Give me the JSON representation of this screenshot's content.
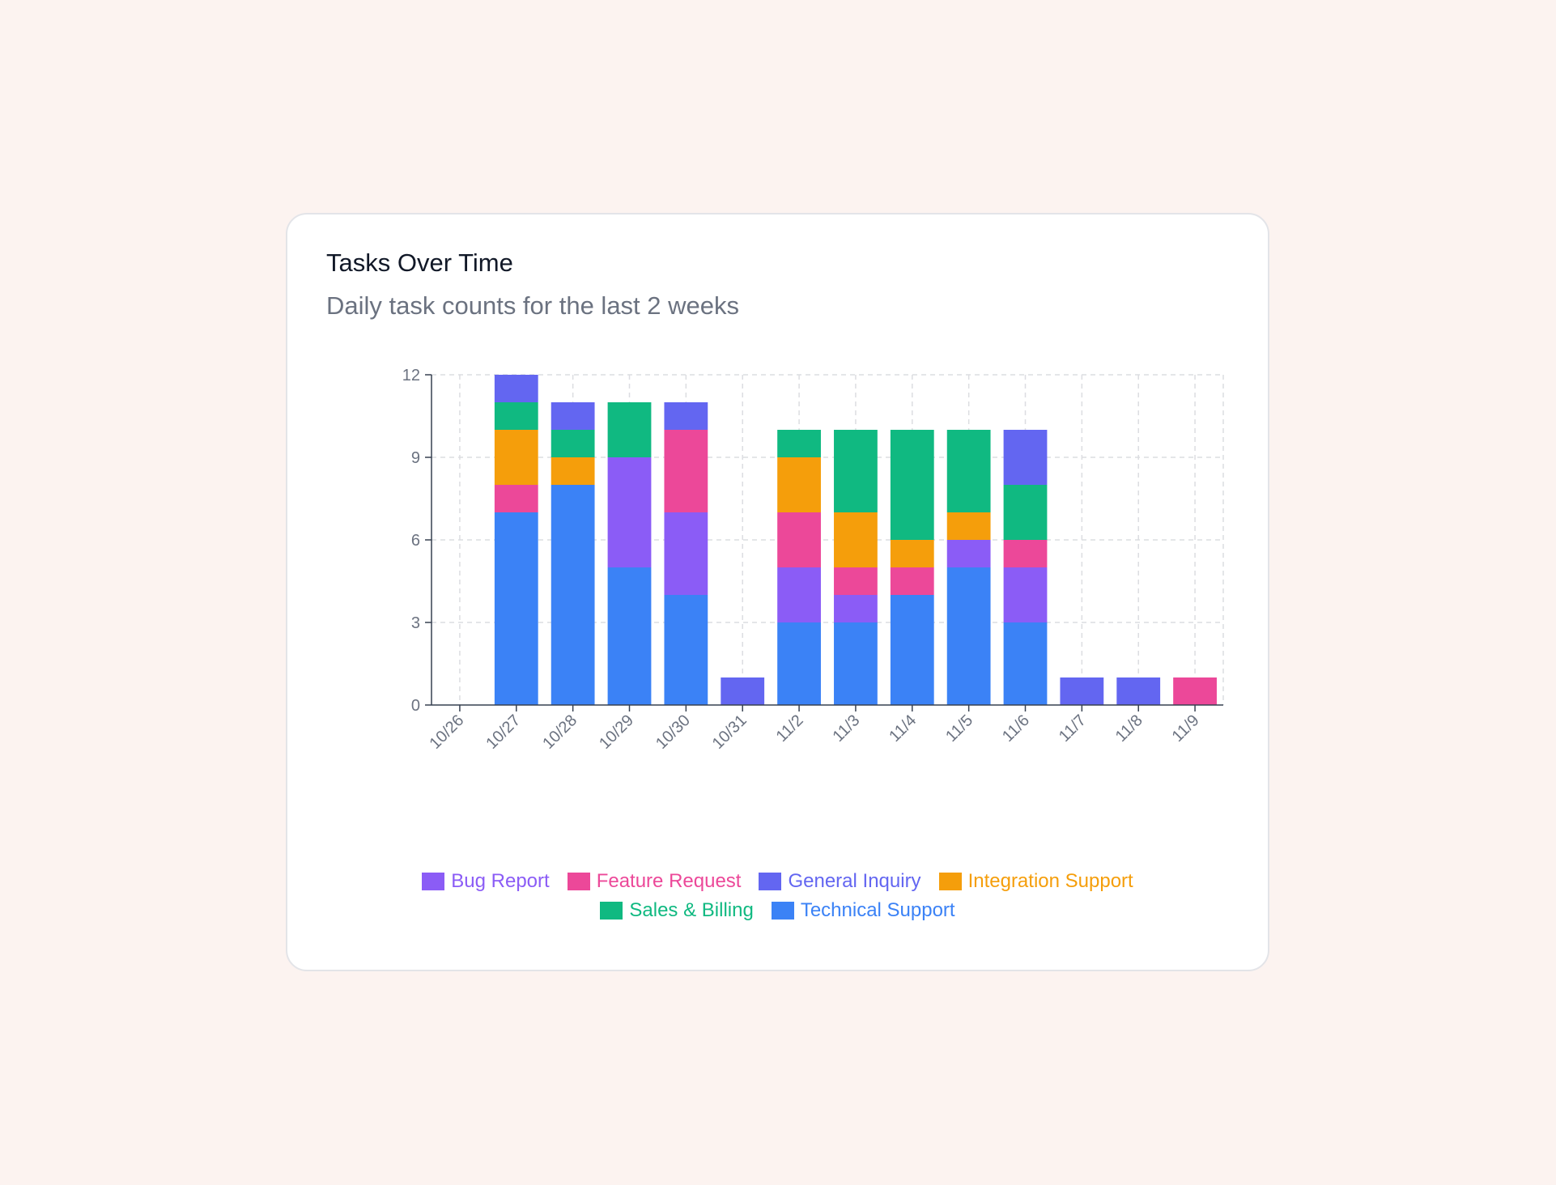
{
  "card": {
    "title": "Tasks Over Time",
    "subtitle": "Daily task counts for the last 2 weeks"
  },
  "chart_data": {
    "type": "bar",
    "stacked": true,
    "title": "Tasks Over Time",
    "subtitle": "Daily task counts for the last 2 weeks",
    "xlabel": "",
    "ylabel": "",
    "ylim": [
      0,
      12
    ],
    "yticks": [
      0,
      3,
      6,
      9,
      12
    ],
    "grid": true,
    "legend_position": "bottom",
    "categories": [
      "10/26",
      "10/27",
      "10/28",
      "10/29",
      "10/30",
      "10/31",
      "11/2",
      "11/3",
      "11/4",
      "11/5",
      "11/6",
      "11/7",
      "11/8",
      "11/9"
    ],
    "series": [
      {
        "name": "Technical Support",
        "color": "#3b82f6",
        "values": [
          0,
          7,
          8,
          5,
          4,
          0,
          3,
          3,
          4,
          5,
          3,
          0,
          0,
          0
        ]
      },
      {
        "name": "Bug Report",
        "color": "#8b5cf6",
        "values": [
          0,
          0,
          0,
          4,
          3,
          0,
          2,
          1,
          0,
          1,
          2,
          0,
          0,
          0
        ]
      },
      {
        "name": "Feature Request",
        "color": "#ec4899",
        "values": [
          0,
          1,
          0,
          0,
          3,
          0,
          2,
          1,
          1,
          0,
          1,
          0,
          0,
          1
        ]
      },
      {
        "name": "Integration Support",
        "color": "#f59e0b",
        "values": [
          0,
          2,
          1,
          0,
          0,
          0,
          2,
          2,
          1,
          1,
          0,
          0,
          0,
          0
        ]
      },
      {
        "name": "Sales & Billing",
        "color": "#10b981",
        "values": [
          0,
          1,
          1,
          2,
          0,
          0,
          1,
          3,
          4,
          3,
          2,
          0,
          0,
          0
        ]
      },
      {
        "name": "General Inquiry",
        "color": "#6366f1",
        "values": [
          0,
          1,
          1,
          0,
          1,
          1,
          0,
          0,
          0,
          0,
          2,
          1,
          1,
          0
        ]
      }
    ],
    "legend_order": [
      "Bug Report",
      "Feature Request",
      "General Inquiry",
      "Integration Support",
      "Sales & Billing",
      "Technical Support"
    ]
  }
}
